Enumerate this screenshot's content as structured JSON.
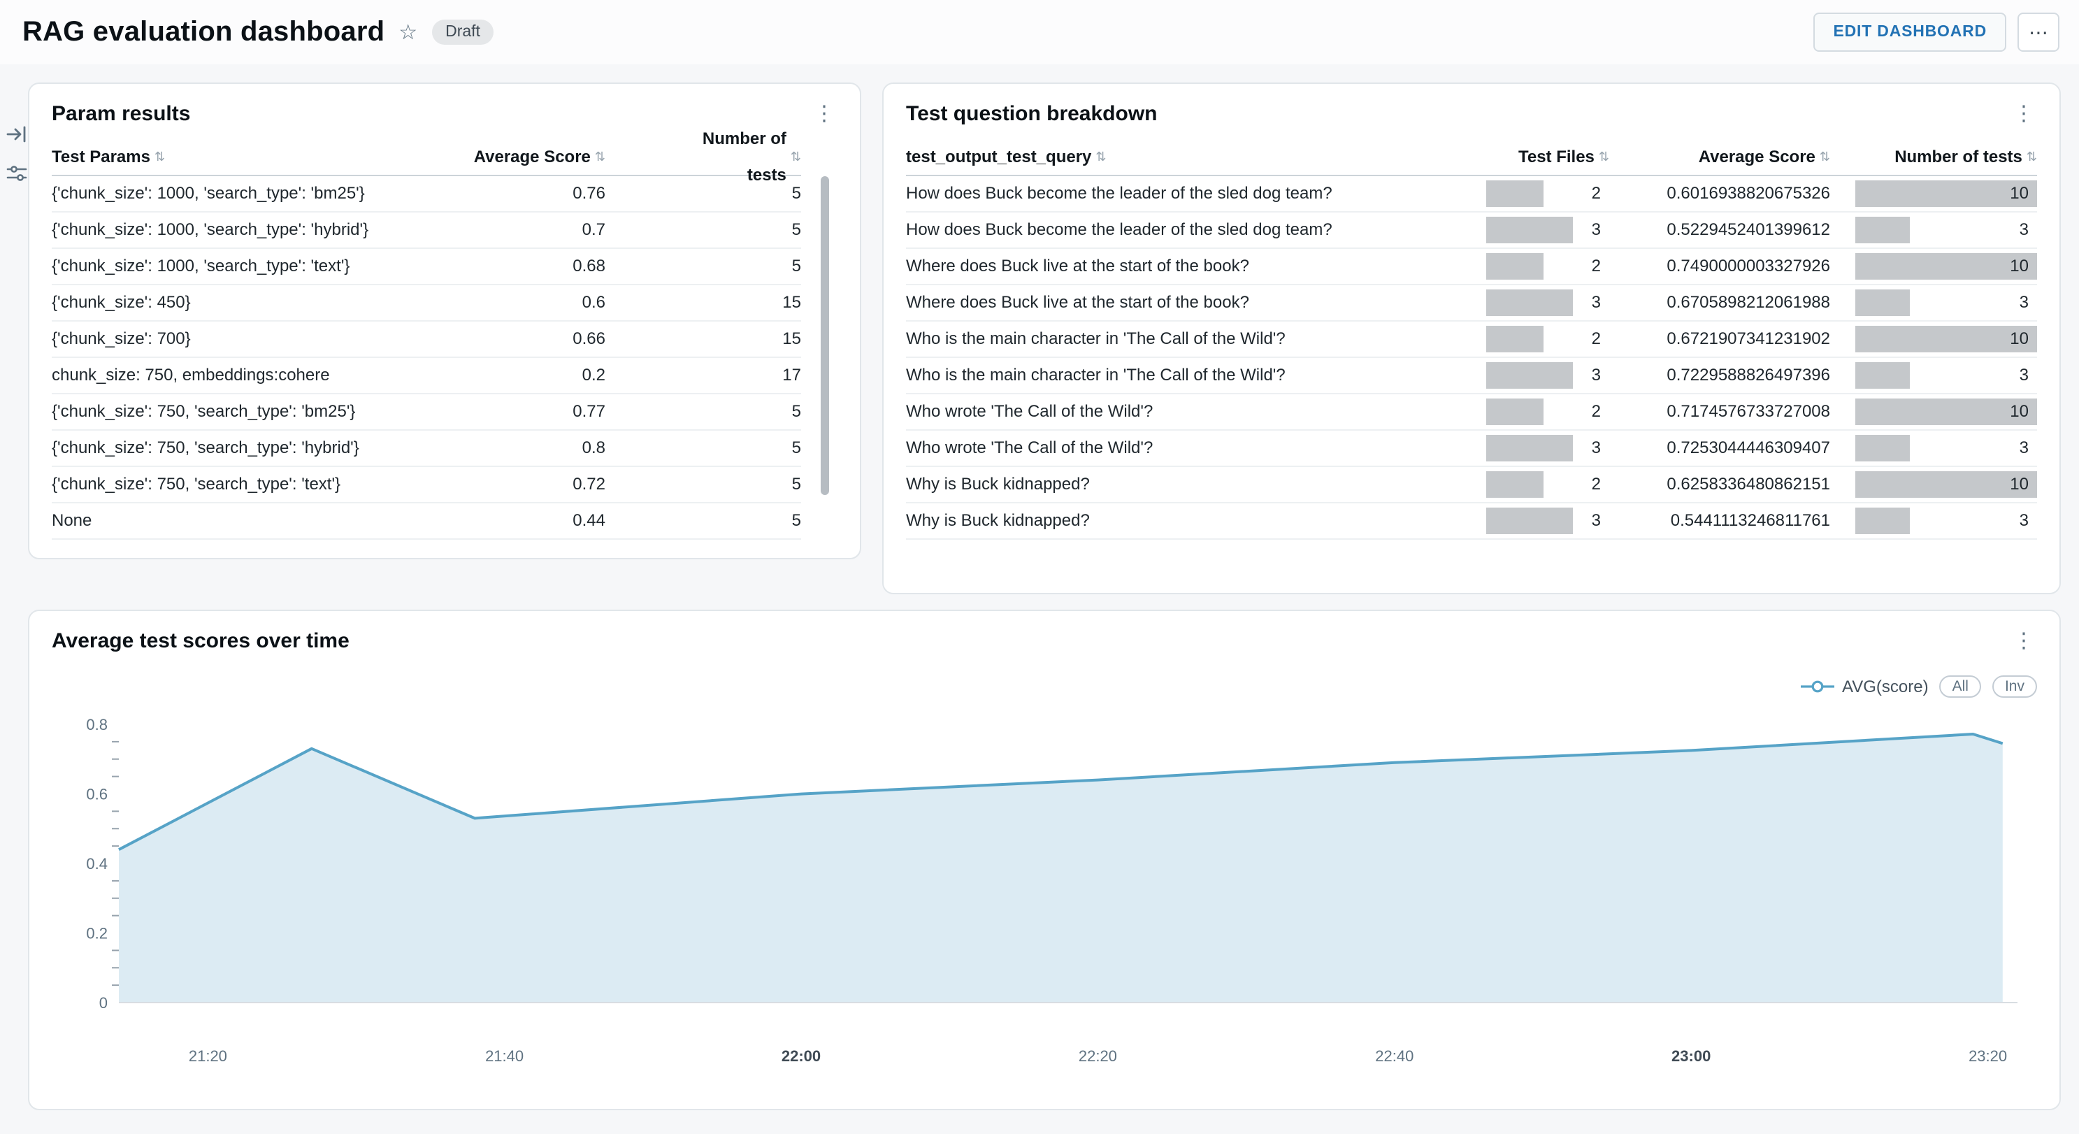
{
  "header": {
    "title": "RAG evaluation dashboard",
    "badge": "Draft",
    "edit_button": "EDIT DASHBOARD",
    "more_button": "⋯"
  },
  "side_icons": [
    "collapse-panel-icon",
    "filter-icon"
  ],
  "param_results": {
    "title": "Param results",
    "columns": [
      "Test Params",
      "Average Score",
      "Number of tests"
    ],
    "rows": [
      {
        "params": "{'chunk_size': 1000, 'search_type': 'bm25'}",
        "avg_score": "0.76",
        "num_tests": "5"
      },
      {
        "params": "{'chunk_size': 1000, 'search_type': 'hybrid'}",
        "avg_score": "0.7",
        "num_tests": "5"
      },
      {
        "params": "{'chunk_size': 1000, 'search_type': 'text'}",
        "avg_score": "0.68",
        "num_tests": "5"
      },
      {
        "params": "{'chunk_size': 450}",
        "avg_score": "0.6",
        "num_tests": "15"
      },
      {
        "params": "{'chunk_size': 700}",
        "avg_score": "0.66",
        "num_tests": "15"
      },
      {
        "params": "chunk_size: 750, embeddings:cohere",
        "avg_score": "0.2",
        "num_tests": "17"
      },
      {
        "params": "{'chunk_size': 750, 'search_type': 'bm25'}",
        "avg_score": "0.77",
        "num_tests": "5"
      },
      {
        "params": "{'chunk_size': 750, 'search_type': 'hybrid'}",
        "avg_score": "0.8",
        "num_tests": "5"
      },
      {
        "params": "{'chunk_size': 750, 'search_type': 'text'}",
        "avg_score": "0.72",
        "num_tests": "5"
      },
      {
        "params": "None",
        "avg_score": "0.44",
        "num_tests": "5"
      }
    ]
  },
  "question_breakdown": {
    "title": "Test question breakdown",
    "columns": [
      "test_output_test_query",
      "Test Files",
      "Average Score",
      "Number of tests"
    ],
    "files_max": 3,
    "tests_max": 10,
    "rows": [
      {
        "query": "How does Buck become the leader of the sled dog team?",
        "files": 2,
        "avg_score": "0.6016938820675326",
        "num_tests": 10
      },
      {
        "query": "How does Buck become the leader of the sled dog team?",
        "files": 3,
        "avg_score": "0.5229452401399612",
        "num_tests": 3
      },
      {
        "query": "Where does Buck live at the start of the book?",
        "files": 2,
        "avg_score": "0.7490000003327926",
        "num_tests": 10
      },
      {
        "query": "Where does Buck live at the start of the book?",
        "files": 3,
        "avg_score": "0.6705898212061988",
        "num_tests": 3
      },
      {
        "query": "Who is the main character in 'The Call of the Wild'?",
        "files": 2,
        "avg_score": "0.6721907341231902",
        "num_tests": 10
      },
      {
        "query": "Who is the main character in 'The Call of the Wild'?",
        "files": 3,
        "avg_score": "0.7229588826497396",
        "num_tests": 3
      },
      {
        "query": "Who wrote 'The Call of the Wild'?",
        "files": 2,
        "avg_score": "0.7174576733727008",
        "num_tests": 10
      },
      {
        "query": "Who wrote 'The Call of the Wild'?",
        "files": 3,
        "avg_score": "0.7253044446309407",
        "num_tests": 3
      },
      {
        "query": "Why is Buck kidnapped?",
        "files": 2,
        "avg_score": "0.6258336480862151",
        "num_tests": 10
      },
      {
        "query": "Why is Buck kidnapped?",
        "files": 3,
        "avg_score": "0.5441113246811761",
        "num_tests": 3
      }
    ]
  },
  "chart": {
    "title": "Average test scores over time",
    "legend": {
      "series_label": "AVG(score)",
      "all_label": "All",
      "inv_label": "Inv"
    }
  },
  "chart_data": {
    "type": "area",
    "title": "Average test scores over time",
    "series": [
      {
        "name": "AVG(score)",
        "points": [
          [
            "21:14",
            0.44
          ],
          [
            "21:27",
            0.73
          ],
          [
            "21:38",
            0.53
          ],
          [
            "22:00",
            0.6
          ],
          [
            "22:20",
            0.64
          ],
          [
            "22:40",
            0.69
          ],
          [
            "23:00",
            0.725
          ],
          [
            "23:19",
            0.772
          ],
          [
            "23:21",
            0.745
          ]
        ]
      }
    ],
    "xlabel": "",
    "ylabel": "",
    "x_domain": [
      "21:14",
      "23:22"
    ],
    "x_ticks": [
      "21:20",
      "21:40",
      "22:00",
      "22:20",
      "22:40",
      "23:00",
      "23:20"
    ],
    "x_bold_ticks": [
      "22:00",
      "23:00"
    ],
    "ylim": [
      0,
      0.8
    ],
    "y_tick_step": 0.2,
    "y_minor_step": 0.05,
    "grid": false,
    "legend_position": "top-right"
  },
  "colors": {
    "accent_blue": "#2272b4",
    "chart_line": "#56a3c7",
    "chart_fill": "#dcebf3",
    "bar_gray": "#c5c8cb",
    "canvas_bg": "#f6f7f9"
  }
}
